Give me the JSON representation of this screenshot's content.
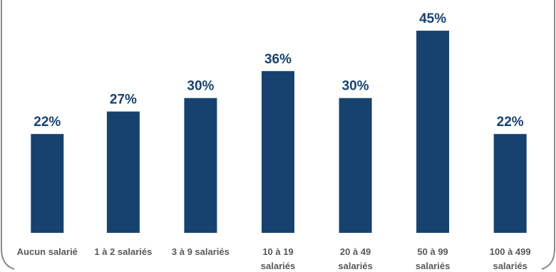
{
  "chart_data": {
    "type": "bar",
    "categories": [
      [
        "Aucun salarié"
      ],
      [
        "1 à 2 salariés"
      ],
      [
        "3 à 9 salariés"
      ],
      [
        "10 à 19",
        "salariés"
      ],
      [
        "20 à 49",
        "salariés"
      ],
      [
        "50 à 99",
        "salariés"
      ],
      [
        "100 à 499",
        "salariés"
      ]
    ],
    "values": [
      22,
      27,
      30,
      36,
      30,
      45,
      22
    ],
    "value_labels": [
      "22%",
      "27%",
      "30%",
      "36%",
      "30%",
      "45%",
      "22%"
    ],
    "unit": "%",
    "ylim": [
      0,
      48
    ],
    "grid": false,
    "legend": "none",
    "bar_color": "#17426f",
    "label_color": "#17426f",
    "category_color": "#595959"
  }
}
